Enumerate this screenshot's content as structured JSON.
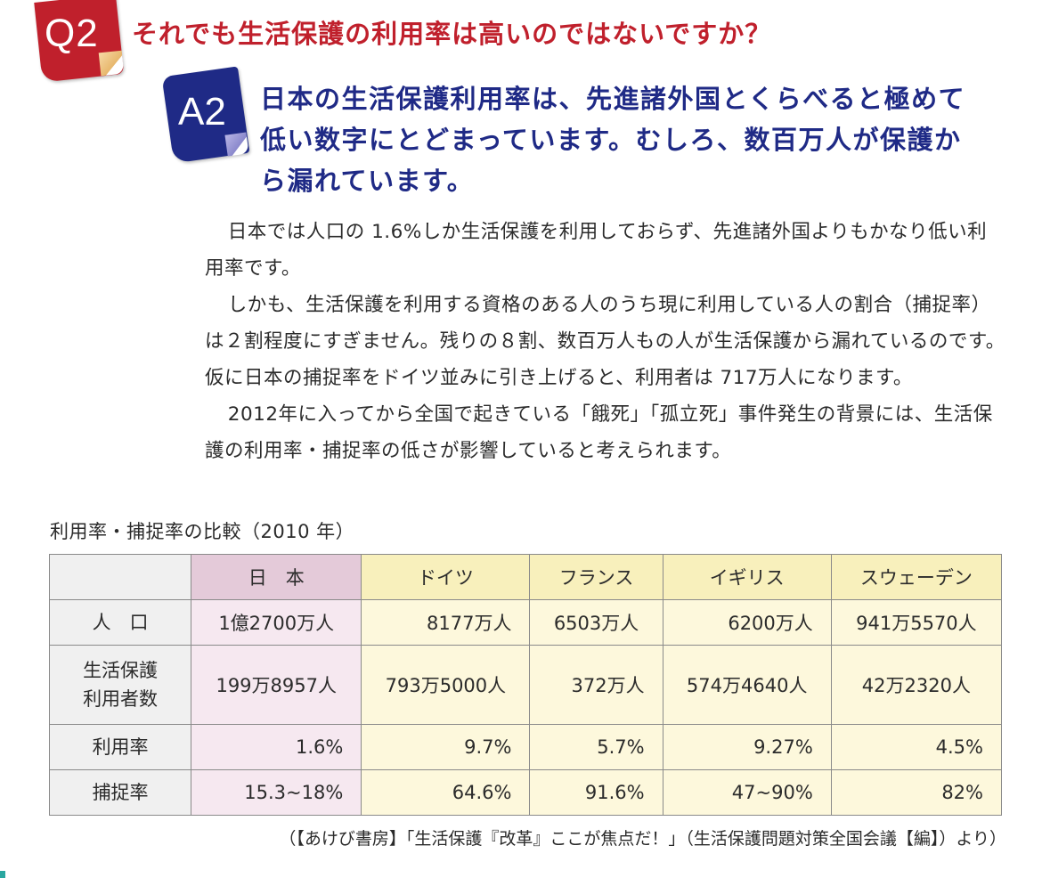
{
  "question": {
    "badge": "Q2",
    "title": "それでも生活保護の利用率は高いのではないですか？"
  },
  "answer": {
    "badge": "A2",
    "lines": [
      "日本の生活保護利用率は、先進諸外国とくらべると極めて",
      "低い数字にとどまっています。むしろ、数百万人が保護か",
      "ら漏れています。"
    ]
  },
  "body": {
    "paragraphs": [
      "日本では人口の 1.6%しか生活保護を利用しておらず、先進諸外国よりもかなり低い利用率です。",
      "しかも、生活保護を利用する資格のある人のうち現に利用している人の割合（捕捉率）は２割程度にすぎません。残りの８割、数百万人もの人が生活保護から漏れているのです。仮に日本の捕捉率をドイツ並みに引き上げると、利用者は 717万人になります。",
      "2012年に入ってから全国で起きている「餓死」「孤立死」事件発生の背景には、生活保護の利用率・捕捉率の低さが影響していると考えられます。"
    ]
  },
  "table": {
    "caption": "利用率・捕捉率の比較（2010 年）",
    "columns": [
      "日　本",
      "ドイツ",
      "フランス",
      "イギリス",
      "スウェーデン"
    ],
    "rows": [
      {
        "label": "人　口",
        "cells": [
          "1億2700万人",
          "8177万人",
          "6503万人",
          "6200万人",
          "941万5570人"
        ]
      },
      {
        "label": "生活保護利用者数",
        "label_lines": [
          "生活保護",
          "利用者数"
        ],
        "cells": [
          "199万8957人",
          "793万5000人",
          "372万人",
          "574万4640人",
          "42万2320人"
        ]
      },
      {
        "label": "利用率",
        "cells": [
          "1.6%",
          "9.7%",
          "5.7%",
          "9.27%",
          "4.5%"
        ]
      },
      {
        "label": "捕捉率",
        "cells": [
          "15.3~18%",
          "64.6%",
          "91.6%",
          "47~90%",
          "82%"
        ]
      }
    ]
  },
  "source": "（【あけび書房】「生活保護『改革』ここが焦点だ！」（生活保護問題対策全国会議【編】）より）",
  "colors": {
    "question_red": "#c0202c",
    "answer_navy": "#1f2a86",
    "japan_column": "#f6e8f0",
    "other_columns": "#fdf8dc"
  }
}
